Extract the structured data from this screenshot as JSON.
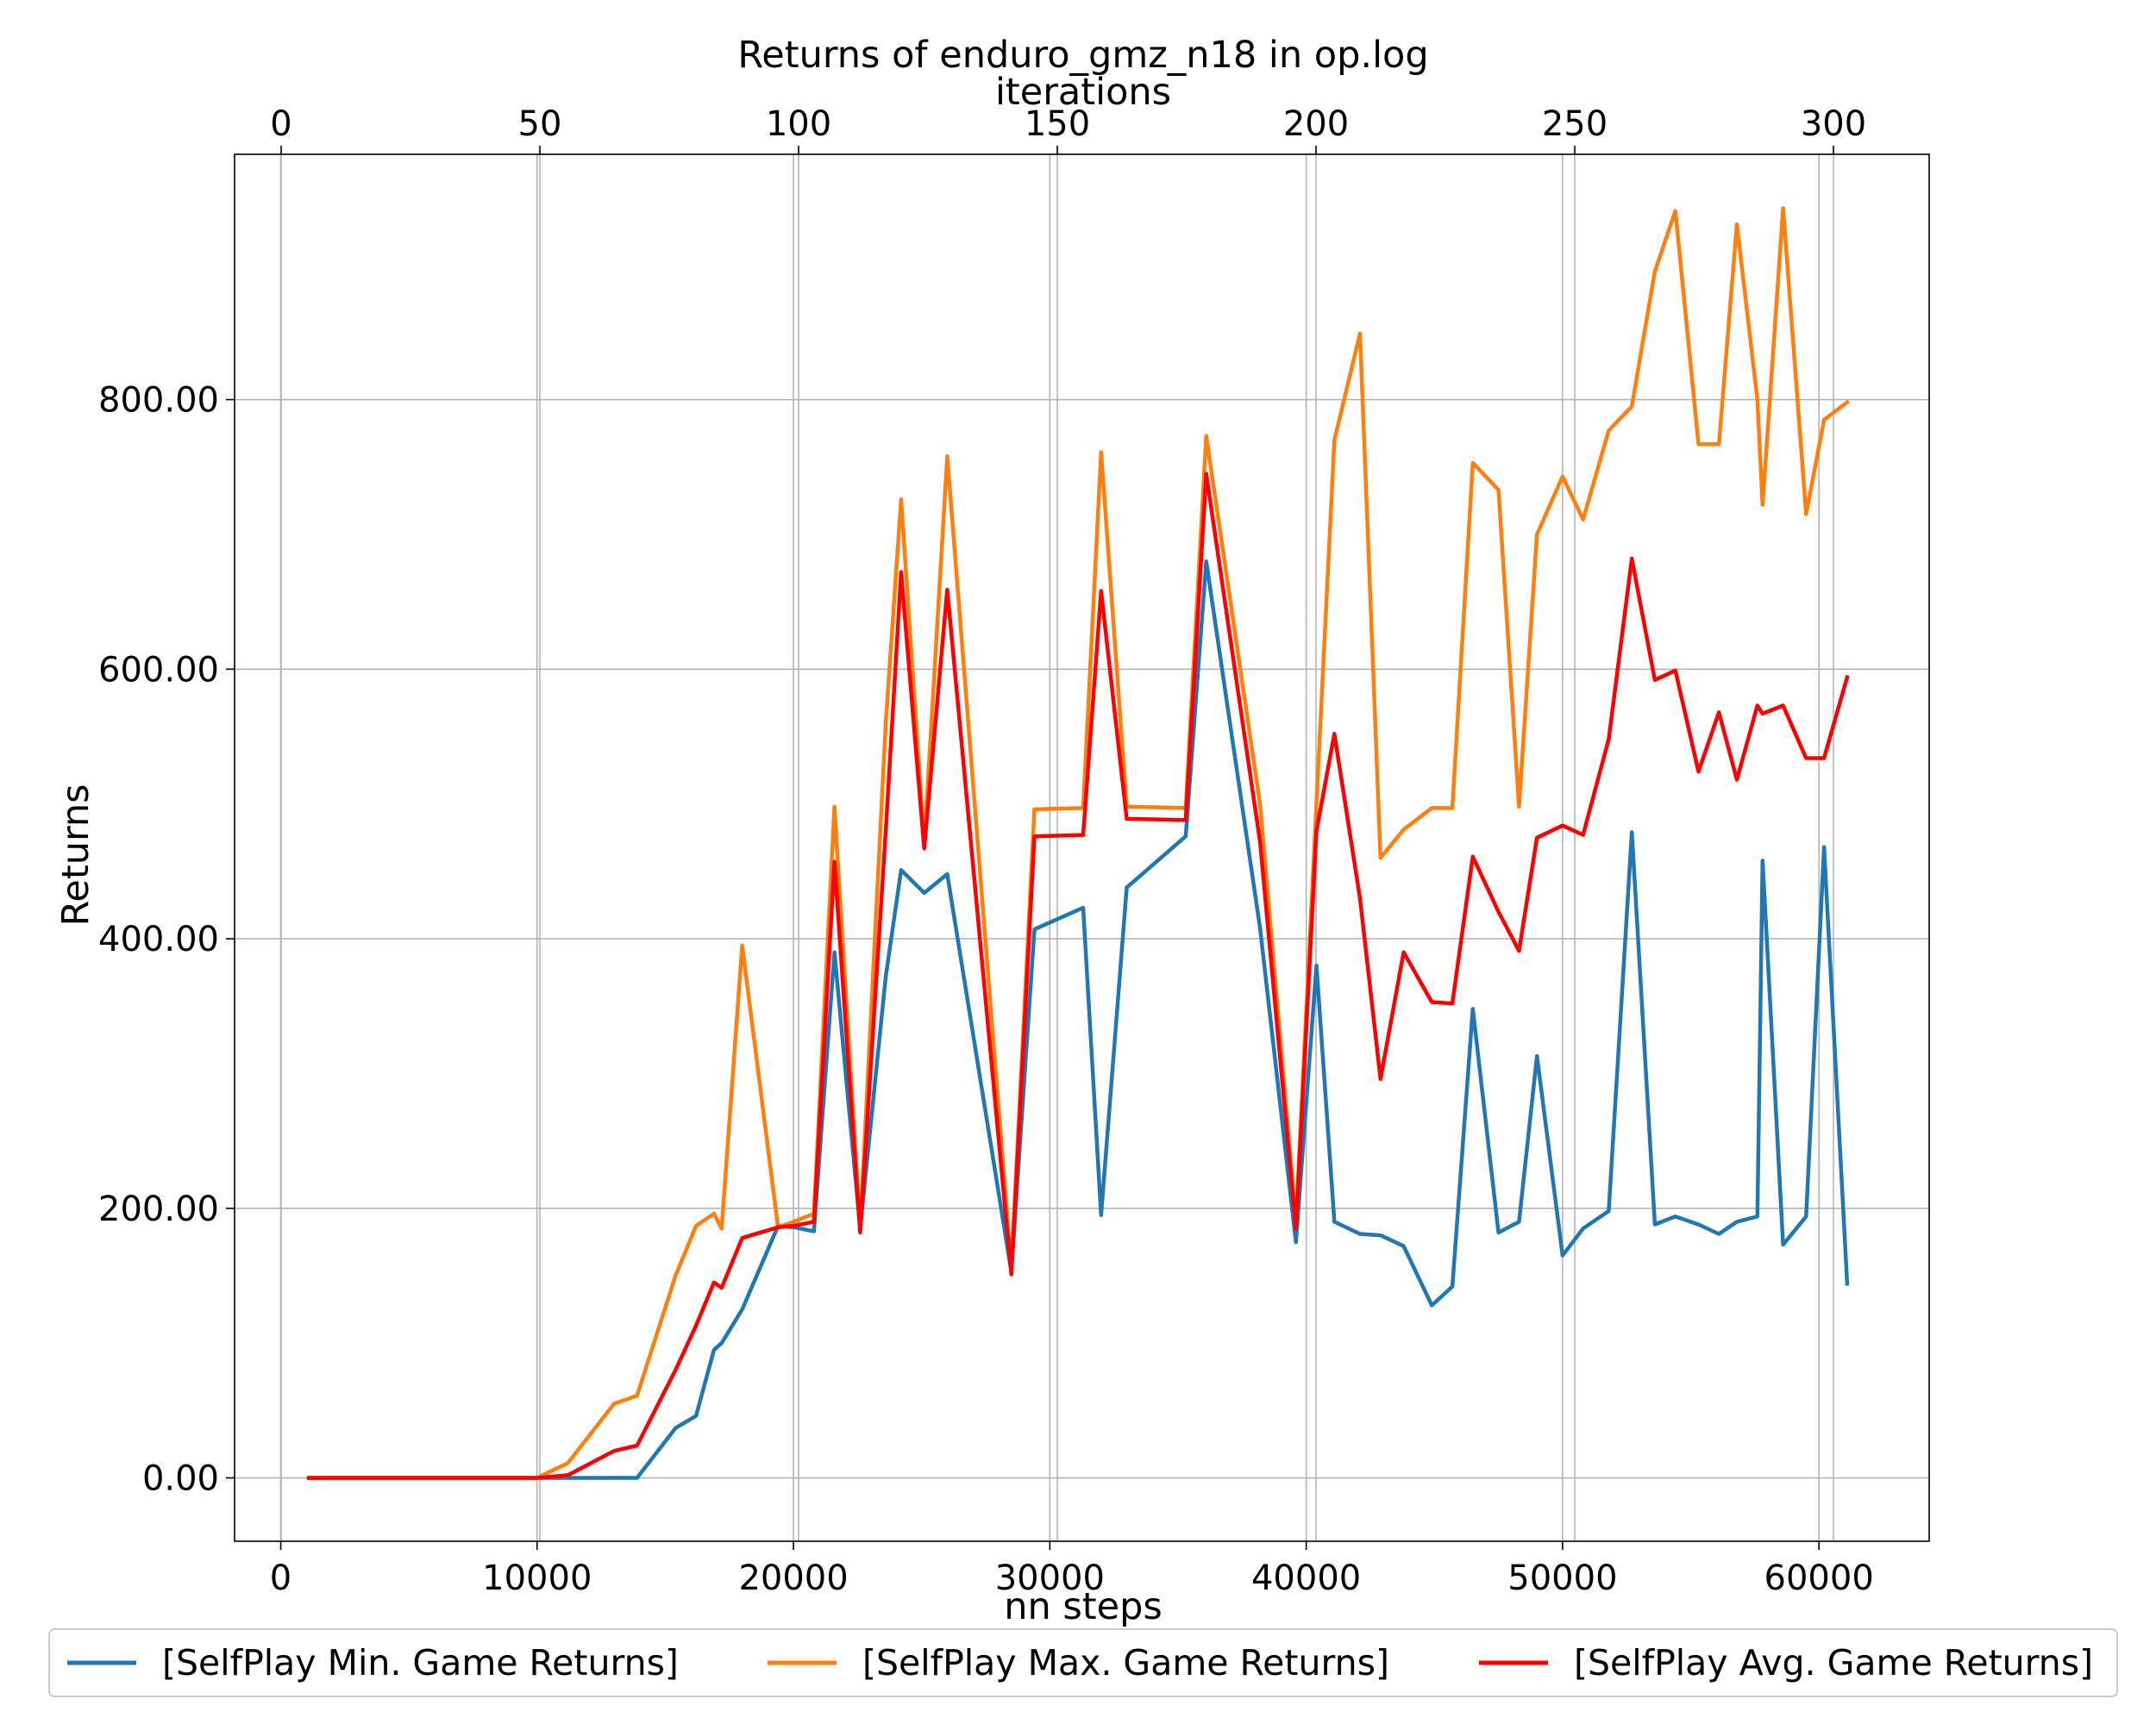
{
  "chart_data": {
    "type": "line",
    "title": "Returns of enduro_gmz_n18 in op.log",
    "xlabel": "nn steps",
    "ylabel": "Returns",
    "top_xlabel": "iterations",
    "xlim": [
      -1800,
      64300
    ],
    "ylim": [
      -47,
      982
    ],
    "top_xlim": [
      -9,
      318.5
    ],
    "x_ticks": [
      0,
      10000,
      20000,
      30000,
      40000,
      50000,
      60000
    ],
    "x_tick_labels": [
      "0",
      "10000",
      "20000",
      "30000",
      "40000",
      "50000",
      "60000"
    ],
    "top_x_ticks": [
      0,
      50,
      100,
      150,
      200,
      250,
      300
    ],
    "top_x_tick_labels": [
      "0",
      "50",
      "100",
      "150",
      "200",
      "250",
      "300"
    ],
    "y_ticks": [
      0,
      200,
      400,
      600,
      800
    ],
    "y_tick_labels": [
      "0.00",
      "200.00",
      "400.00",
      "600.00",
      "800.00"
    ],
    "grid": true,
    "legend_position": "bottom-outside",
    "series": [
      {
        "name": "[SelfPlay Min. Game Returns]",
        "color": "#1f77b4",
        "x": [
          1100,
          10000,
          11200,
          13000,
          13900,
          15400,
          16200,
          16900,
          17200,
          18000,
          19400,
          20000,
          20800,
          21600,
          22600,
          23600,
          24200,
          25100,
          26000,
          28500,
          29400,
          31300,
          32000,
          33000,
          35300,
          36100,
          38200,
          39600,
          40400,
          41100,
          42100,
          42900,
          43800,
          44900,
          45700,
          46500,
          47500,
          48300,
          49000,
          50000,
          50800,
          51800,
          52700,
          53600,
          54400,
          55300,
          56100,
          56800,
          57600,
          57800,
          58600,
          59500,
          60200,
          61100
        ],
        "y": [
          0,
          0,
          0,
          0,
          0,
          37,
          46,
          95,
          100,
          125,
          187,
          186,
          183,
          390,
          185,
          372,
          451,
          434,
          448,
          153,
          407,
          423,
          195,
          438,
          476,
          680,
          408,
          175,
          380,
          190,
          181,
          180,
          172,
          128,
          142,
          348,
          182,
          190,
          313,
          165,
          185,
          198,
          479,
          188,
          194,
          188,
          181,
          190,
          194,
          458,
          173,
          194,
          468,
          144
        ]
      },
      {
        "name": "[SelfPlay Max. Game Returns]",
        "color": "#ff7f0e",
        "x": [
          1100,
          10000,
          11200,
          13000,
          13900,
          15400,
          16200,
          16900,
          17200,
          18000,
          19400,
          20000,
          20800,
          21600,
          22600,
          23600,
          24200,
          25100,
          26000,
          28500,
          29400,
          31300,
          32000,
          33000,
          35300,
          36100,
          38200,
          39600,
          40400,
          41100,
          42100,
          42900,
          43800,
          44900,
          45700,
          46500,
          47500,
          48300,
          49000,
          50000,
          50800,
          51800,
          52700,
          53600,
          54400,
          55300,
          56100,
          56800,
          57600,
          57800,
          58600,
          59500,
          60200,
          61100
        ],
        "y": [
          0,
          0,
          11,
          55,
          61,
          150,
          187,
          196,
          185,
          395,
          186,
          190,
          196,
          498,
          185,
          560,
          726,
          470,
          758,
          155,
          496,
          497,
          761,
          498,
          497,
          773,
          500,
          190,
          500,
          770,
          849,
          460,
          481,
          497,
          497,
          753,
          733,
          498,
          700,
          743,
          711,
          777,
          795,
          895,
          940,
          767,
          767,
          930,
          800,
          722,
          942,
          715,
          785,
          798
        ]
      },
      {
        "name": "[SelfPlay Avg. Game Returns]",
        "color": "#ff0000",
        "x": [
          1100,
          10000,
          11200,
          13000,
          13900,
          15400,
          16200,
          16900,
          17200,
          18000,
          19400,
          20000,
          20800,
          21600,
          22600,
          23600,
          24200,
          25100,
          26000,
          28500,
          29400,
          31300,
          32000,
          33000,
          35300,
          36100,
          38200,
          39600,
          40400,
          41100,
          42100,
          42900,
          43800,
          44900,
          45700,
          46500,
          47500,
          48300,
          49000,
          50000,
          50800,
          51800,
          52700,
          53600,
          54400,
          55300,
          56100,
          56800,
          57600,
          57800,
          58600,
          59500,
          60200,
          61100
        ],
        "y": [
          0,
          0,
          2,
          20,
          24,
          80,
          113,
          145,
          141,
          178,
          186,
          187,
          190,
          457,
          182,
          480,
          672,
          467,
          659,
          151,
          476,
          477,
          658,
          489,
          488,
          745,
          472,
          185,
          480,
          552,
          430,
          296,
          390,
          353,
          352,
          461,
          420,
          391,
          475,
          484,
          477,
          548,
          682,
          592,
          599,
          524,
          568,
          518,
          573,
          567,
          573,
          534,
          534,
          594
        ]
      }
    ]
  }
}
